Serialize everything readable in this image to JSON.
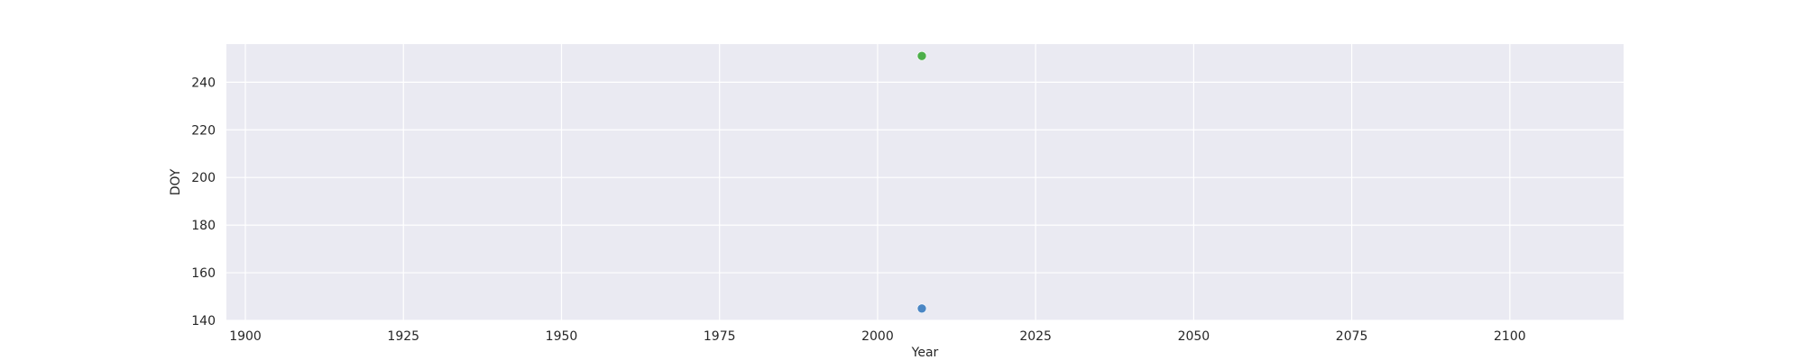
{
  "chart_data": {
    "type": "scatter",
    "title": "",
    "xlabel": "Year",
    "ylabel": "DOY",
    "xlim": [
      1897,
      2118
    ],
    "ylim": [
      140,
      256
    ],
    "xticks": [
      1900,
      1925,
      1950,
      1975,
      2000,
      2025,
      2050,
      2075,
      2100
    ],
    "yticks": [
      140,
      160,
      180,
      200,
      220,
      240
    ],
    "grid": true,
    "legend": "none",
    "background_color": "#eaeaf2",
    "grid_color": "#ffffff",
    "series": [
      {
        "color": "#4a86c4",
        "points": [
          {
            "x": 2007,
            "y": 145
          }
        ]
      },
      {
        "color": "#4daf4a",
        "points": [
          {
            "x": 2007,
            "y": 251
          }
        ]
      }
    ]
  }
}
